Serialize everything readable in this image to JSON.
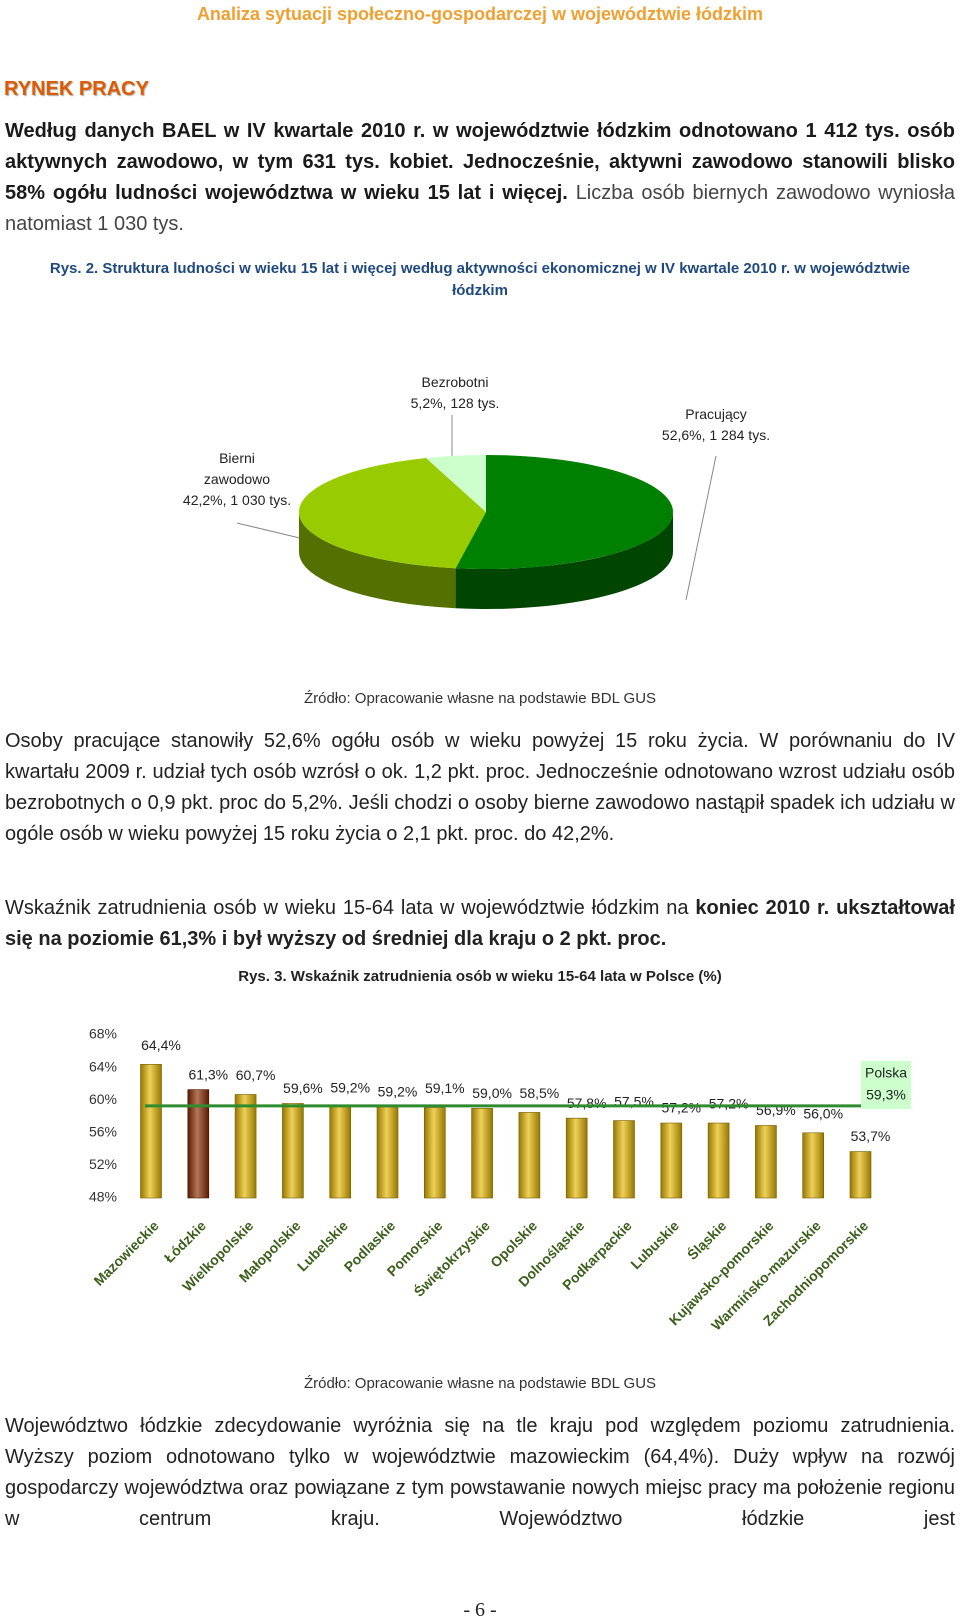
{
  "header": {
    "title": "Analiza sytuacji społeczno-gospodarczej w województwie łódzkim"
  },
  "section_title": "RYNEK PRACY",
  "paragraphs": [
    [
      "Według danych BAEL w IV kwartale 2010 r. w województwie łódzkim odnotowano 1 412 tys. osób aktywnych zawodowo, w tym 631 tys. kobiet. Jednocześnie, aktywni zawodowo stanowili blisko 58% ogółu ludności województwa w wieku 15 lat i więcej.",
      "Liczba osób biernych zawodowo wyniosła natomiast 1 030 tys."
    ],
    [
      "Osoby pracujące stanowiły 52,6% ogółu osób w wieku powyżej 15 roku życia. W porównaniu do IV kwartału 2009 r. udział tych osób wzrósł o ok. 1,2 pkt. proc. Jednocześnie odnotowano wzrost udziału osób bezrobotnych o 0,9 pkt. proc do 5,2%. Jeśli chodzi o osoby bierne zawodowo nastąpił spadek ich udziału w ogóle osób w wieku powyżej 15 roku życia o 2,1 pkt. proc. do 42,2%."
    ],
    [
      "Wskaźnik zatrudnienia osób w wieku 15-64 lata w województwie łódzkim na",
      "koniec 2010 r. ukształtował się na poziomie 61,3% i był wyższy od średniej dla kraju o 2 pkt. proc."
    ],
    [
      "Województwo łódzkie zdecydowanie wyróżnia się na tle kraju pod względem poziomu zatrudnienia. Wyższy poziom odnotowano tylko w województwie mazowieckim (64,4%). Duży wpływ na rozwój gospodarczy województwa oraz powiązane z tym powstawanie nowych miejsc pracy ma położenie regionu w centrum kraju. Województwo łódzkie jest"
    ]
  ],
  "chart_data": [
    {
      "type": "pie",
      "title": "Rys. 2. Struktura ludności w wieku 15 lat i więcej według aktywności ekonomicznej w IV kwartale 2010 r. w województwie łódzkim",
      "categories": [
        "Pracujący",
        "Bierni zawodowo",
        "Bezrobotni"
      ],
      "values": [
        52.6,
        42.2,
        5.2
      ],
      "value_labels": [
        "52,6%, 1 284 tys.",
        "42,2%, 1 030 tys.",
        "5,2%, 128 tys."
      ],
      "colors": [
        "#008000",
        "#99cc00",
        "#ccffcc"
      ],
      "source": "Źródło: Opracowanie własne na podstawie BDL GUS"
    },
    {
      "type": "bar",
      "title": "Rys. 3. Wskaźnik zatrudnienia osób w wieku 15-64 lata w Polsce (%)",
      "categories": [
        "Mazowieckie",
        "Łódzkie",
        "Wielkopolskie",
        "Małopolskie",
        "Lubelskie",
        "Podlaskie",
        "Pomorskie",
        "Świętokrzyskie",
        "Opolskie",
        "Dolnośląskie",
        "Podkarpackie",
        "Lubuskie",
        "Śląskie",
        "Kujawsko-pomorskie",
        "Warmińsko-mazurskie",
        "Zachodniopomorskie"
      ],
      "values": [
        64.4,
        61.3,
        60.7,
        59.6,
        59.2,
        59.2,
        59.1,
        59.0,
        58.5,
        57.8,
        57.5,
        57.2,
        57.2,
        56.9,
        56.0,
        53.7
      ],
      "value_labels": [
        "64,4%",
        "61,3%",
        "60,7%",
        "59,6%",
        "59,2%",
        "59,2%",
        "59,1%",
        "59,0%",
        "58,5%",
        "57,8%",
        "57,5%",
        "57,2%",
        "57,2%",
        "56,9%",
        "56,0%",
        "53,7%"
      ],
      "colors": [
        "#e6b800",
        "#8b2a00",
        "#e6b800",
        "#e6b800",
        "#e6b800",
        "#e6b800",
        "#e6b800",
        "#e6b800",
        "#e6b800",
        "#e6b800",
        "#e6b800",
        "#e6b800",
        "#e6b800",
        "#e6b800",
        "#e6b800",
        "#e6b800"
      ],
      "ylim": [
        48,
        68
      ],
      "yticks": [
        {
          "value": 48,
          "label": "48%"
        },
        {
          "value": 52,
          "label": "52%"
        },
        {
          "value": 56,
          "label": "56%"
        },
        {
          "value": 60,
          "label": "60%"
        },
        {
          "value": 64,
          "label": "64%"
        },
        {
          "value": 68,
          "label": "68%"
        }
      ],
      "reference_line": {
        "name": "Polska",
        "value": 59.3,
        "value_label": "59,3%",
        "color": "#2e8b2e"
      },
      "source": "Źródło: Opracowanie własne na podstawie BDL GUS"
    }
  ],
  "page_number": "- 6 -"
}
